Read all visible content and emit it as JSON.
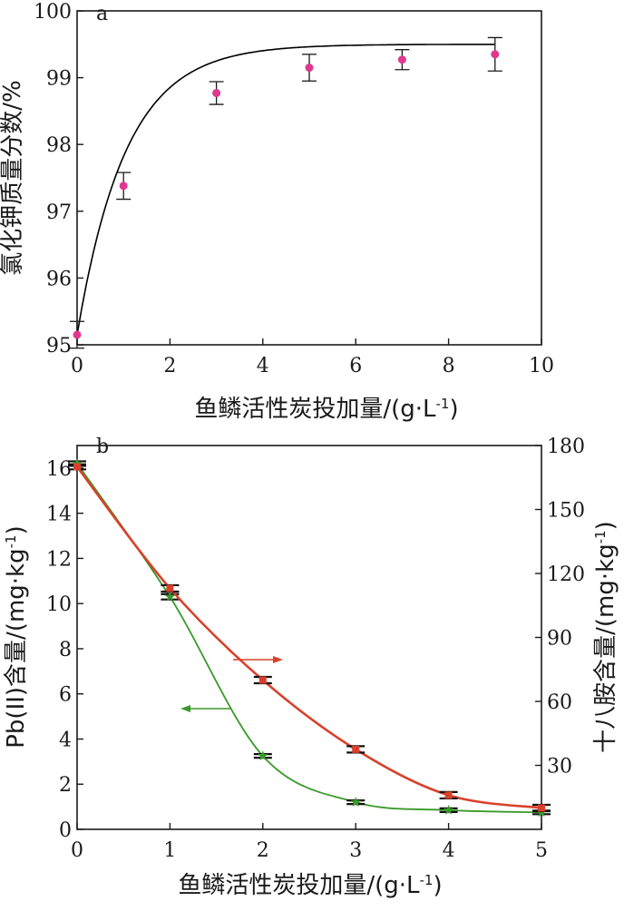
{
  "chart_data": [
    {
      "type": "line",
      "panel_label": "a",
      "xlabel": "鱼鳞活性炭投加量/(g·L",
      "xlabel_sup": "-1",
      "xlabel_end": ")",
      "ylabel": "氯化钾质量分数/%",
      "xlim": [
        0,
        10
      ],
      "ylim": [
        95,
        100
      ],
      "xticks": [
        "0",
        "2",
        "4",
        "6",
        "8",
        "10"
      ],
      "yticks": [
        "95",
        "96",
        "97",
        "98",
        "99",
        "100"
      ],
      "grid": false,
      "series": [
        {
          "color": "#e0388f",
          "marker": "circle",
          "x": [
            0,
            1,
            3,
            5,
            7,
            9
          ],
          "y": [
            95.15,
            97.38,
            98.77,
            99.15,
            99.27,
            99.35
          ],
          "error": [
            0.2,
            0.2,
            0.17,
            0.2,
            0.15,
            0.25
          ]
        }
      ],
      "fit_color": "#000000"
    },
    {
      "type": "line",
      "panel_label": "b",
      "xlabel": "鱼鳞活性炭投加量/(g·L",
      "xlabel_sup": "-1",
      "xlabel_end": ")",
      "ylabel_left": "Pb(II)含量/(mg·kg",
      "ylabel_left_sup": "-1",
      "ylabel_left_end": ")",
      "ylabel_right": "十八胺含量/(mg·kg",
      "ylabel_right_sup": "-1",
      "ylabel_right_end": ")",
      "xlim": [
        0,
        5
      ],
      "ylim_left": [
        0,
        17
      ],
      "ylim_right": [
        0,
        180
      ],
      "xticks": [
        "0",
        "1",
        "2",
        "3",
        "4",
        "5"
      ],
      "yticks_left": [
        "0",
        "2",
        "4",
        "6",
        "8",
        "10",
        "12",
        "14",
        "16"
      ],
      "yticks_right": [
        "30",
        "60",
        "90",
        "120",
        "150",
        "180"
      ],
      "grid": false,
      "series": [
        {
          "axis": "left",
          "color": "#3a9a2a",
          "marker": "star",
          "x": [
            0,
            1,
            2,
            3,
            4,
            5
          ],
          "y": [
            16.2,
            10.3,
            3.25,
            1.2,
            0.85,
            0.75
          ],
          "error": [
            0.1,
            0.12,
            0.08,
            0.08,
            0.08,
            0.08
          ]
        },
        {
          "axis": "right",
          "color": "#d9402b",
          "marker": "square",
          "x": [
            0,
            1,
            2,
            3,
            4,
            5
          ],
          "y": [
            170,
            113,
            70,
            37.5,
            16,
            10
          ],
          "error": [
            1.2,
            1.5,
            1.5,
            1.5,
            1.5,
            1.5
          ]
        }
      ],
      "arrows": [
        {
          "points_to": "right",
          "color": "#d9402b"
        },
        {
          "points_to": "left",
          "color": "#3a9a2a"
        }
      ]
    }
  ]
}
